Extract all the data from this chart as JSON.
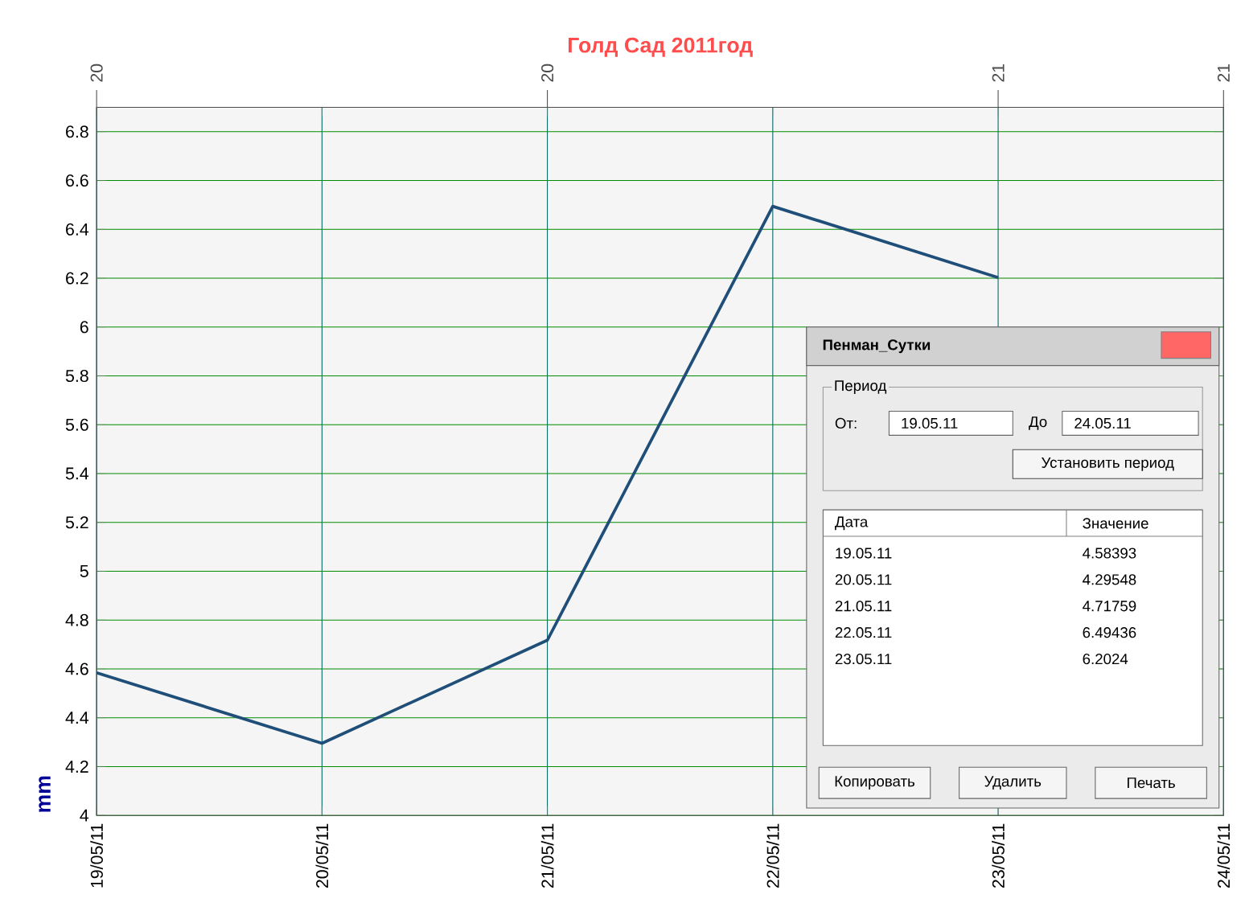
{
  "chart_data": {
    "type": "line",
    "title": "Голд Сад 2011год",
    "ylabel": "mm",
    "categories": [
      "19/05/11",
      "20/05/11",
      "21/05/11",
      "22/05/11",
      "23/05/11",
      "24/05/11"
    ],
    "series": [
      {
        "color": "#1f4e79",
        "values": [
          4.58393,
          4.29548,
          4.71759,
          6.49436,
          6.2024,
          null
        ]
      }
    ],
    "value_labels": [
      "4.58393",
      "4.29548",
      "4.71759",
      "6.49436",
      "6.2024",
      null
    ],
    "ylim": [
      4,
      6.9
    ],
    "yticks": [
      4,
      4.2,
      4.4,
      4.6,
      4.8,
      5,
      5.2,
      5.4,
      5.6,
      5.8,
      6,
      6.2,
      6.4,
      6.6,
      6.8
    ],
    "grid": true,
    "annotations": [
      "Пенман_Сутки",
      "Период",
      "От:",
      "19.05.11",
      "До",
      "24.05.11",
      "Установить период",
      "Дата",
      "Значение",
      "19.05.11",
      "20.05.11",
      "21.05.11",
      "22.05.11",
      "23.05.11",
      "Копировать",
      "Удалить",
      "Печать",
      "20",
      "20",
      "21",
      "21"
    ]
  }
}
